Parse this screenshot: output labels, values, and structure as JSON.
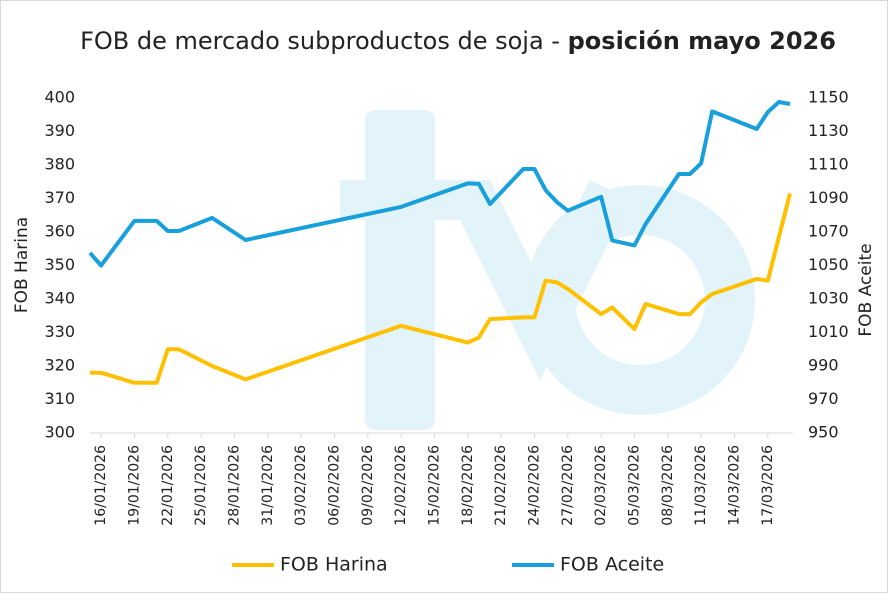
{
  "chart_data": {
    "type": "line",
    "title": "FOB de mercado subproductos de soja -",
    "title_emphasis": "posición mayo 2026",
    "y_label": "FOB Harina",
    "y2_label": "FOB Aceite",
    "x": [
      "15/01/2026",
      "16/01/2026",
      "19/01/2026",
      "20/01/2026",
      "21/01/2026",
      "22/01/2026",
      "23/01/2026",
      "26/01/2026",
      "29/01/2026",
      "12/02/2026",
      "18/02/2026",
      "19/02/2026",
      "20/02/2026",
      "23/02/2026",
      "24/02/2026",
      "25/02/2026",
      "26/02/2026",
      "27/02/2026",
      "02/03/2026",
      "03/03/2026",
      "05/03/2026",
      "06/03/2026",
      "09/03/2026",
      "10/03/2026",
      "11/03/2026",
      "12/03/2026",
      "16/03/2026",
      "17/03/2026",
      "18/03/2026",
      "19/03/2026"
    ],
    "series": [
      {
        "name": "FOB Harina",
        "color": "#ffc000",
        "values": [
          318,
          318,
          315,
          315,
          315,
          325,
          325,
          320,
          316,
          332,
          327,
          328.5,
          334,
          334.5,
          334.5,
          345.5,
          345,
          343,
          335.5,
          337.5,
          331,
          338.5,
          335.5,
          335.5,
          339,
          341.5,
          346,
          345.5,
          358.5,
          371.5
        ]
      },
      {
        "name": "FOB Aceite",
        "color": "#17a0db",
        "axis": "y2",
        "values": [
          1057.5,
          1050,
          1076.6,
          1076.6,
          1076.6,
          1070.6,
          1070.6,
          1078.4,
          1065.2,
          1085,
          1099,
          1098.7,
          1086.7,
          1107.6,
          1107.6,
          1095,
          1088,
          1082.7,
          1091,
          1065,
          1062,
          1074.8,
          1104.6,
          1104.6,
          1111,
          1142,
          1131.5,
          1141.6,
          1147.6,
          1146.4
        ]
      }
    ],
    "xlim": [
      "15/01/2026",
      "19/03/2026"
    ],
    "xticks": [
      "16/01/2026",
      "19/01/2026",
      "22/01/2026",
      "25/01/2026",
      "28/01/2026",
      "31/01/2026",
      "03/02/2026",
      "06/02/2026",
      "09/02/2026",
      "12/02/2026",
      "15/02/2026",
      "18/02/2026",
      "21/02/2026",
      "24/02/2026",
      "27/02/2026",
      "02/03/2026",
      "05/03/2026",
      "08/03/2026",
      "11/03/2026",
      "14/03/2026",
      "17/03/2026"
    ],
    "ylim": [
      300,
      400
    ],
    "yticks": [
      300,
      310,
      320,
      330,
      340,
      350,
      360,
      370,
      380,
      390,
      400
    ],
    "y2lim": [
      950,
      1150
    ],
    "y2ticks": [
      950,
      970,
      990,
      1010,
      1030,
      1050,
      1070,
      1090,
      1110,
      1130,
      1150
    ],
    "legend": "bottom"
  }
}
